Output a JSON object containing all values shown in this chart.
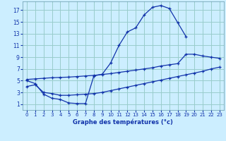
{
  "bg_color": "#cceeff",
  "grid_color": "#99cccc",
  "line_color": "#1133aa",
  "xlabel": "Graphe des températures (°c)",
  "xlim": [
    -0.5,
    23.5
  ],
  "ylim": [
    0,
    18.5
  ],
  "xticks": [
    0,
    1,
    2,
    3,
    4,
    5,
    6,
    7,
    8,
    9,
    10,
    11,
    12,
    13,
    14,
    15,
    16,
    17,
    18,
    19,
    20,
    21,
    22,
    23
  ],
  "yticks": [
    1,
    3,
    5,
    7,
    9,
    11,
    13,
    15,
    17
  ],
  "curve1_x": [
    0,
    1,
    2,
    3,
    4,
    5,
    6,
    7,
    8,
    9,
    10,
    11,
    12,
    13,
    14,
    15,
    16,
    17,
    18,
    19
  ],
  "curve1_y": [
    5.0,
    4.5,
    2.7,
    2.0,
    1.8,
    1.2,
    1.1,
    1.1,
    5.8,
    6.1,
    8.0,
    11.0,
    13.3,
    14.0,
    16.2,
    17.5,
    17.8,
    17.3,
    14.9,
    12.5
  ],
  "curve2_x": [
    0,
    1,
    2,
    3,
    4,
    5,
    6,
    7,
    8,
    9,
    10,
    11,
    12,
    13,
    14,
    15,
    16,
    17,
    18,
    19,
    20,
    21,
    22,
    23
  ],
  "curve2_y": [
    5.2,
    5.3,
    5.4,
    5.5,
    5.55,
    5.6,
    5.7,
    5.8,
    5.9,
    6.05,
    6.2,
    6.4,
    6.6,
    6.8,
    7.0,
    7.2,
    7.5,
    7.7,
    7.9,
    9.5,
    9.5,
    9.2,
    9.0,
    8.8
  ],
  "curve3_x": [
    0,
    1,
    2,
    3,
    4,
    5,
    6,
    7,
    8,
    9,
    10,
    11,
    12,
    13,
    14,
    15,
    16,
    17,
    18,
    19,
    20,
    21,
    22,
    23
  ],
  "curve3_y": [
    4.0,
    4.3,
    3.0,
    2.8,
    2.5,
    2.5,
    2.6,
    2.7,
    2.8,
    3.0,
    3.3,
    3.6,
    3.9,
    4.2,
    4.5,
    4.8,
    5.1,
    5.4,
    5.7,
    6.0,
    6.3,
    6.6,
    7.0,
    7.3
  ]
}
